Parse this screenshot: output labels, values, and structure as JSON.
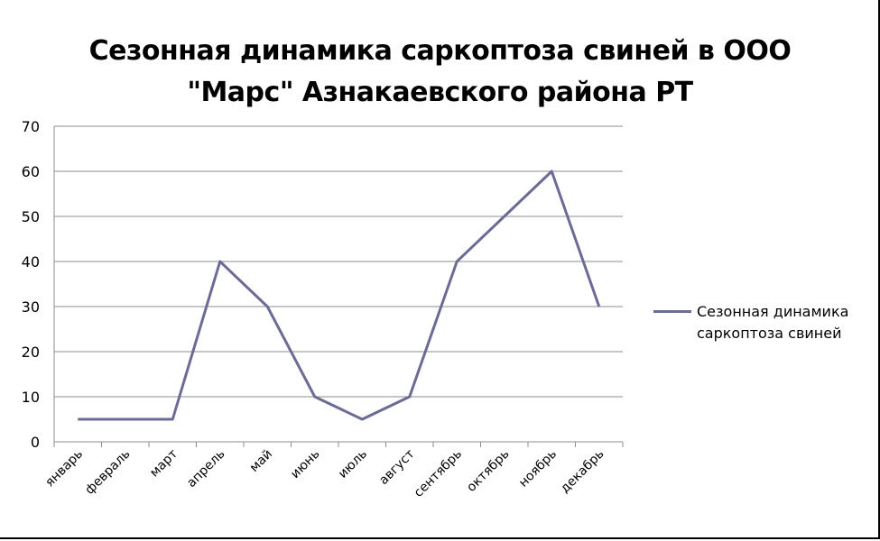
{
  "chart_data": {
    "type": "line",
    "title_lines": [
      "Сезонная динамика саркоптоза свиней в ООО",
      "\"Марс\" Азнакаевского района РТ"
    ],
    "xlabel": "",
    "ylabel": "",
    "categories": [
      "январь",
      "февраль",
      "март",
      "апрель",
      "май",
      "июнь",
      "июль",
      "август",
      "сентябрь",
      "октябрь",
      "ноябрь",
      "декабрь"
    ],
    "series": [
      {
        "name": "Сезонная динамика саркоптоза свиней",
        "values": [
          5,
          5,
          5,
          40,
          30,
          10,
          5,
          10,
          40,
          50,
          60,
          30
        ],
        "color": "#6b6b96"
      }
    ],
    "ylim": [
      0,
      70
    ],
    "yticks": [
      0,
      10,
      20,
      30,
      40,
      50,
      60,
      70
    ],
    "grid": true,
    "legend_position": "right",
    "legend_lines": [
      "Сезонная динамика",
      "саркоптоза свиней"
    ]
  }
}
